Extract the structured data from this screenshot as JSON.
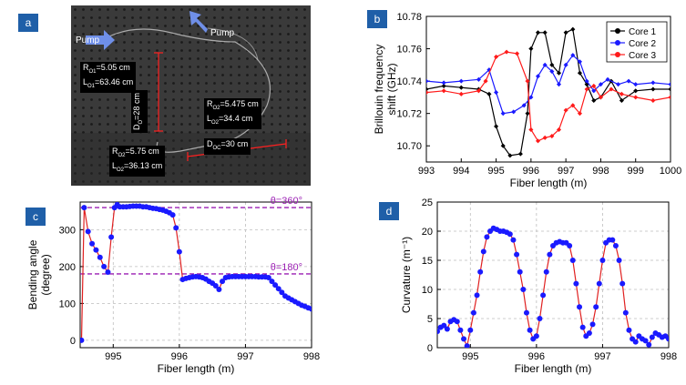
{
  "panels": {
    "a": {
      "tag": "a",
      "labels": {
        "pump1": "Pump",
        "pump2": "Pump",
        "r_o1": "R",
        "r_o1_sub": "O1",
        "r_o1_val": "=5.05 cm",
        "l_o1": "L",
        "l_o1_sub": "O1",
        "l_o1_val": "=63.46 cm",
        "d_o": "D",
        "d_o_sub": "O",
        "d_o_val": "=28 cm",
        "r_o2": "R",
        "r_o2_sub": "O2",
        "r_o2_val": "=5.475 cm",
        "l_o2": "L",
        "l_o2_sub": "O2",
        "l_o2_val": "=34.4 cm",
        "r_o3": "R",
        "r_o3_sub": "O2",
        "r_o3_val": "=5.75 cm",
        "l_o3": "L",
        "l_o3_sub": "O2",
        "l_o3_val": "=36.13 cm",
        "d_oc": "D",
        "d_oc_sub": "OC",
        "d_oc_val": "=30 cm"
      }
    },
    "b": {
      "tag": "b"
    },
    "c": {
      "tag": "c"
    },
    "d": {
      "tag": "d"
    }
  },
  "chart_data": [
    {
      "id": "b",
      "type": "line",
      "xlabel": "Fiber length (m)",
      "ylabel": "Brillouin frequency shift (GHz)",
      "ylabel_lines": [
        "Brillouin frequency",
        "shift (GHz)"
      ],
      "xlim": [
        993,
        1000
      ],
      "ylim": [
        10.69,
        10.78
      ],
      "xticks": [
        "993",
        "994",
        "995",
        "996",
        "997",
        "998",
        "999",
        "1000"
      ],
      "yticks": [
        "10.70",
        "10.72",
        "10.74",
        "10.76",
        "10.78"
      ],
      "grid": false,
      "legend": "top-right",
      "series": [
        {
          "name": "Core 1",
          "color": "#000000",
          "x": [
            993,
            993.5,
            994,
            994.5,
            994.8,
            995.0,
            995.2,
            995.4,
            995.7,
            995.9,
            996.0,
            996.2,
            996.4,
            996.6,
            996.8,
            997.0,
            997.2,
            997.4,
            997.6,
            997.8,
            998.0,
            998.3,
            998.6,
            999,
            999.5,
            1000
          ],
          "values": [
            10.735,
            10.737,
            10.736,
            10.735,
            10.732,
            10.712,
            10.7,
            10.694,
            10.695,
            10.72,
            10.76,
            10.77,
            10.77,
            10.75,
            10.745,
            10.77,
            10.772,
            10.745,
            10.738,
            10.728,
            10.73,
            10.74,
            10.728,
            10.734,
            10.735,
            10.735
          ]
        },
        {
          "name": "Core 2",
          "color": "#1a1aff",
          "x": [
            993,
            993.5,
            994,
            994.5,
            994.8,
            995.0,
            995.2,
            995.5,
            995.8,
            996.0,
            996.2,
            996.4,
            996.6,
            996.8,
            997.0,
            997.2,
            997.4,
            997.6,
            997.8,
            998.0,
            998.2,
            998.5,
            998.8,
            999,
            999.5,
            1000
          ],
          "values": [
            10.74,
            10.739,
            10.74,
            10.741,
            10.747,
            10.733,
            10.72,
            10.721,
            10.725,
            10.73,
            10.743,
            10.75,
            10.746,
            10.738,
            10.75,
            10.756,
            10.752,
            10.74,
            10.734,
            10.738,
            10.741,
            10.738,
            10.74,
            10.738,
            10.739,
            10.738
          ]
        },
        {
          "name": "Core 3",
          "color": "#ff1a1a",
          "x": [
            993,
            993.5,
            994,
            994.5,
            994.7,
            995.0,
            995.3,
            995.6,
            995.9,
            996.0,
            996.2,
            996.4,
            996.6,
            996.8,
            997.0,
            997.2,
            997.4,
            997.6,
            997.8,
            998.0,
            998.3,
            998.6,
            999,
            999.5,
            1000
          ],
          "values": [
            10.733,
            10.734,
            10.732,
            10.734,
            10.74,
            10.755,
            10.758,
            10.757,
            10.74,
            10.71,
            10.703,
            10.705,
            10.706,
            10.71,
            10.722,
            10.725,
            10.72,
            10.735,
            10.737,
            10.73,
            10.735,
            10.732,
            10.73,
            10.728,
            10.73
          ]
        }
      ]
    },
    {
      "id": "c",
      "type": "line",
      "xlabel": "Fiber length (m)",
      "ylabel": "Bending angle (degree)",
      "ylabel_lines": [
        "Bending angle",
        "(degree)"
      ],
      "xlim": [
        994.5,
        998
      ],
      "ylim": [
        -20,
        375
      ],
      "xticks": [
        "995",
        "996",
        "997",
        "998"
      ],
      "yticks": [
        "0",
        "100",
        "200",
        "300"
      ],
      "grid": true,
      "reference_lines": [
        {
          "value": 360,
          "label": "θ=360°",
          "color": "#9b1fb4"
        },
        {
          "value": 180,
          "label": "θ=180°",
          "color": "#9b1fb4"
        }
      ],
      "series": [
        {
          "name": "",
          "color": "#1a1aff",
          "line_color": "#e02020",
          "x": [
            994.52,
            994.56,
            994.62,
            994.68,
            994.74,
            994.8,
            994.86,
            994.92,
            994.97,
            995.02,
            995.06,
            995.1,
            995.15,
            995.2,
            995.25,
            995.3,
            995.35,
            995.4,
            995.45,
            995.5,
            995.55,
            995.6,
            995.65,
            995.7,
            995.75,
            995.8,
            995.85,
            995.9,
            995.95,
            996.0,
            996.05,
            996.1,
            996.15,
            996.2,
            996.25,
            996.3,
            996.35,
            996.4,
            996.45,
            996.5,
            996.55,
            996.6,
            996.65,
            996.7,
            996.75,
            996.8,
            996.85,
            996.9,
            996.95,
            997.0,
            997.05,
            997.1,
            997.15,
            997.2,
            997.25,
            997.3,
            997.35,
            997.4,
            997.45,
            997.5,
            997.55,
            997.6,
            997.65,
            997.7,
            997.75,
            997.8,
            997.85,
            997.9,
            997.95,
            998.0
          ],
          "values": [
            0,
            360,
            295,
            262,
            245,
            225,
            200,
            185,
            280,
            360,
            368,
            362,
            362,
            362,
            363,
            364,
            364,
            364,
            362,
            362,
            360,
            358,
            357,
            355,
            353,
            350,
            346,
            340,
            305,
            240,
            165,
            168,
            170,
            172,
            173,
            172,
            170,
            166,
            160,
            155,
            148,
            138,
            160,
            170,
            172,
            173,
            173,
            173,
            173,
            173,
            173,
            173,
            173,
            172,
            172,
            172,
            170,
            160,
            150,
            140,
            130,
            120,
            115,
            110,
            105,
            100,
            95,
            92,
            88,
            85
          ]
        }
      ]
    },
    {
      "id": "d",
      "type": "line",
      "xlabel": "Fiber length (m)",
      "ylabel": "Curvature (m⁻¹)",
      "xlim": [
        994.5,
        998
      ],
      "ylim": [
        0,
        25
      ],
      "xticks": [
        "995",
        "996",
        "997",
        "998"
      ],
      "yticks": [
        "0",
        "5",
        "10",
        "15",
        "20",
        "25"
      ],
      "grid": true,
      "series": [
        {
          "name": "",
          "color": "#1a1aff",
          "line_color": "#e02020",
          "x": [
            994.5,
            994.55,
            994.6,
            994.65,
            994.7,
            994.75,
            994.8,
            994.85,
            994.9,
            994.95,
            995.0,
            995.05,
            995.1,
            995.15,
            995.2,
            995.25,
            995.3,
            995.35,
            995.4,
            995.45,
            995.5,
            995.55,
            995.6,
            995.65,
            995.7,
            995.75,
            995.8,
            995.85,
            995.9,
            995.95,
            996.0,
            996.05,
            996.1,
            996.15,
            996.2,
            996.25,
            996.3,
            996.35,
            996.4,
            996.45,
            996.5,
            996.55,
            996.6,
            996.65,
            996.7,
            996.75,
            996.8,
            996.85,
            996.9,
            996.95,
            997.0,
            997.05,
            997.1,
            997.15,
            997.2,
            997.25,
            997.3,
            997.35,
            997.4,
            997.45,
            997.5,
            997.55,
            997.6,
            997.65,
            997.7,
            997.75,
            997.8,
            997.85,
            997.9,
            997.95,
            998.0
          ],
          "values": [
            2.8,
            3.5,
            3.8,
            3.2,
            4.5,
            4.8,
            4.5,
            3.0,
            1.5,
            0.3,
            3.0,
            6.0,
            9.0,
            13.0,
            16.5,
            19.0,
            20.0,
            20.5,
            20.3,
            20.0,
            20.0,
            19.8,
            19.5,
            18.5,
            16.0,
            13.0,
            10.0,
            6.0,
            3.0,
            1.5,
            2.0,
            5.0,
            9.0,
            13.0,
            16.0,
            17.5,
            18.0,
            18.2,
            18.0,
            18.0,
            17.5,
            15.0,
            11.0,
            7.0,
            3.5,
            2.0,
            2.5,
            4.0,
            7.0,
            11.0,
            15.0,
            18.0,
            18.5,
            18.5,
            17.5,
            15.0,
            11.0,
            6.0,
            3.0,
            1.5,
            1.0,
            2.0,
            1.5,
            1.2,
            0.5,
            1.8,
            2.5,
            2.2,
            1.8,
            2.0,
            1.5
          ]
        }
      ]
    }
  ]
}
